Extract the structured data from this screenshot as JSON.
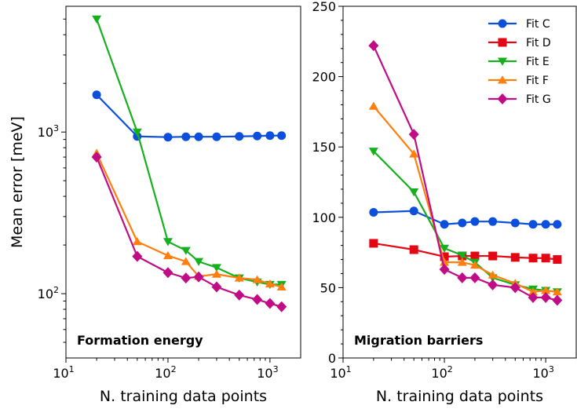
{
  "chart_data": [
    {
      "type": "line",
      "xscale": "log",
      "yscale": "log",
      "xlim": [
        10,
        2000
      ],
      "ylim": [
        40,
        6000
      ],
      "xlabel": "N. training data points",
      "ylabel": "Mean error [meV]",
      "annotation": "Formation energy",
      "x_ticks": [
        {
          "value": 10,
          "label": "10",
          "sup": "1"
        },
        {
          "value": 100,
          "label": "10",
          "sup": "2"
        },
        {
          "value": 1000,
          "label": "10",
          "sup": "3"
        }
      ],
      "y_ticks": [
        {
          "value": 100,
          "label": "10",
          "sup": "2"
        },
        {
          "value": 1000,
          "label": "10",
          "sup": "3"
        }
      ],
      "series": [
        {
          "color": "#0b4fdc",
          "marker": "circle",
          "x": [
            20,
            50,
            100,
            150,
            200,
            300,
            500,
            750,
            1000,
            1300
          ],
          "y": [
            1700,
            940,
            930,
            935,
            935,
            935,
            940,
            945,
            950,
            950
          ]
        },
        {
          "color": "#16b01e",
          "marker": "triangle-down",
          "x": [
            20,
            50,
            100,
            150,
            200,
            300,
            500,
            750,
            1000,
            1300
          ],
          "y": [
            5000,
            1000,
            210,
            185,
            158,
            145,
            125,
            118,
            114,
            114
          ]
        },
        {
          "color": "#ff7f0e",
          "marker": "triangle-up",
          "x": [
            20,
            50,
            100,
            150,
            200,
            300,
            500,
            750,
            1000,
            1300
          ],
          "y": [
            740,
            210,
            172,
            158,
            128,
            132,
            125,
            122,
            115,
            110
          ]
        },
        {
          "color": "#c10d85",
          "marker": "diamond",
          "x": [
            20,
            50,
            100,
            150,
            200,
            300,
            500,
            750,
            1000,
            1300
          ],
          "y": [
            700,
            170,
            135,
            125,
            127,
            110,
            98,
            92,
            87,
            83
          ]
        }
      ]
    },
    {
      "type": "line",
      "xscale": "log",
      "yscale": "linear",
      "xlim": [
        10,
        2000
      ],
      "ylim": [
        0,
        250
      ],
      "xlabel": "N. training data points",
      "ylabel": "",
      "annotation": "Migration barriers",
      "legend_position": "top-right",
      "x_ticks": [
        {
          "value": 10,
          "label": "10",
          "sup": "1"
        },
        {
          "value": 100,
          "label": "10",
          "sup": "2"
        },
        {
          "value": 1000,
          "label": "10",
          "sup": "3"
        }
      ],
      "y_ticks": [
        {
          "value": 0,
          "label": "0"
        },
        {
          "value": 50,
          "label": "50"
        },
        {
          "value": 100,
          "label": "100"
        },
        {
          "value": 150,
          "label": "150"
        },
        {
          "value": 200,
          "label": "200"
        },
        {
          "value": 250,
          "label": "250"
        }
      ],
      "series": [
        {
          "name": "Fit C",
          "color": "#0b4fdc",
          "marker": "circle",
          "x": [
            20,
            50,
            100,
            150,
            200,
            300,
            500,
            750,
            1000,
            1300
          ],
          "y": [
            103.5,
            104.5,
            95,
            96,
            97,
            97,
            96,
            95,
            95,
            95
          ]
        },
        {
          "name": "Fit D",
          "color": "#e30613",
          "marker": "square",
          "x": [
            20,
            50,
            100,
            150,
            200,
            300,
            500,
            750,
            1000,
            1300
          ],
          "y": [
            81.5,
            77,
            72,
            72.5,
            72.5,
            72.5,
            71.5,
            71,
            71,
            70
          ]
        },
        {
          "name": "Fit E",
          "color": "#16b01e",
          "marker": "triangle-down",
          "x": [
            20,
            50,
            100,
            150,
            200,
            300,
            500,
            750,
            1000,
            1300
          ],
          "y": [
            147,
            118,
            78,
            73,
            68,
            57,
            52,
            49,
            48,
            47
          ]
        },
        {
          "name": "Fit F",
          "color": "#ff7f0e",
          "marker": "triangle-up",
          "x": [
            20,
            50,
            100,
            150,
            200,
            300,
            500,
            750,
            1000,
            1300
          ],
          "y": [
            179,
            145,
            68,
            68,
            66,
            59,
            53,
            47,
            48,
            47
          ]
        },
        {
          "name": "Fit G",
          "color": "#c10d85",
          "marker": "diamond",
          "x": [
            20,
            50,
            100,
            150,
            200,
            300,
            500,
            750,
            1000,
            1300
          ],
          "y": [
            222,
            159,
            63,
            57,
            57,
            52,
            50,
            43,
            43,
            41
          ]
        }
      ]
    }
  ]
}
